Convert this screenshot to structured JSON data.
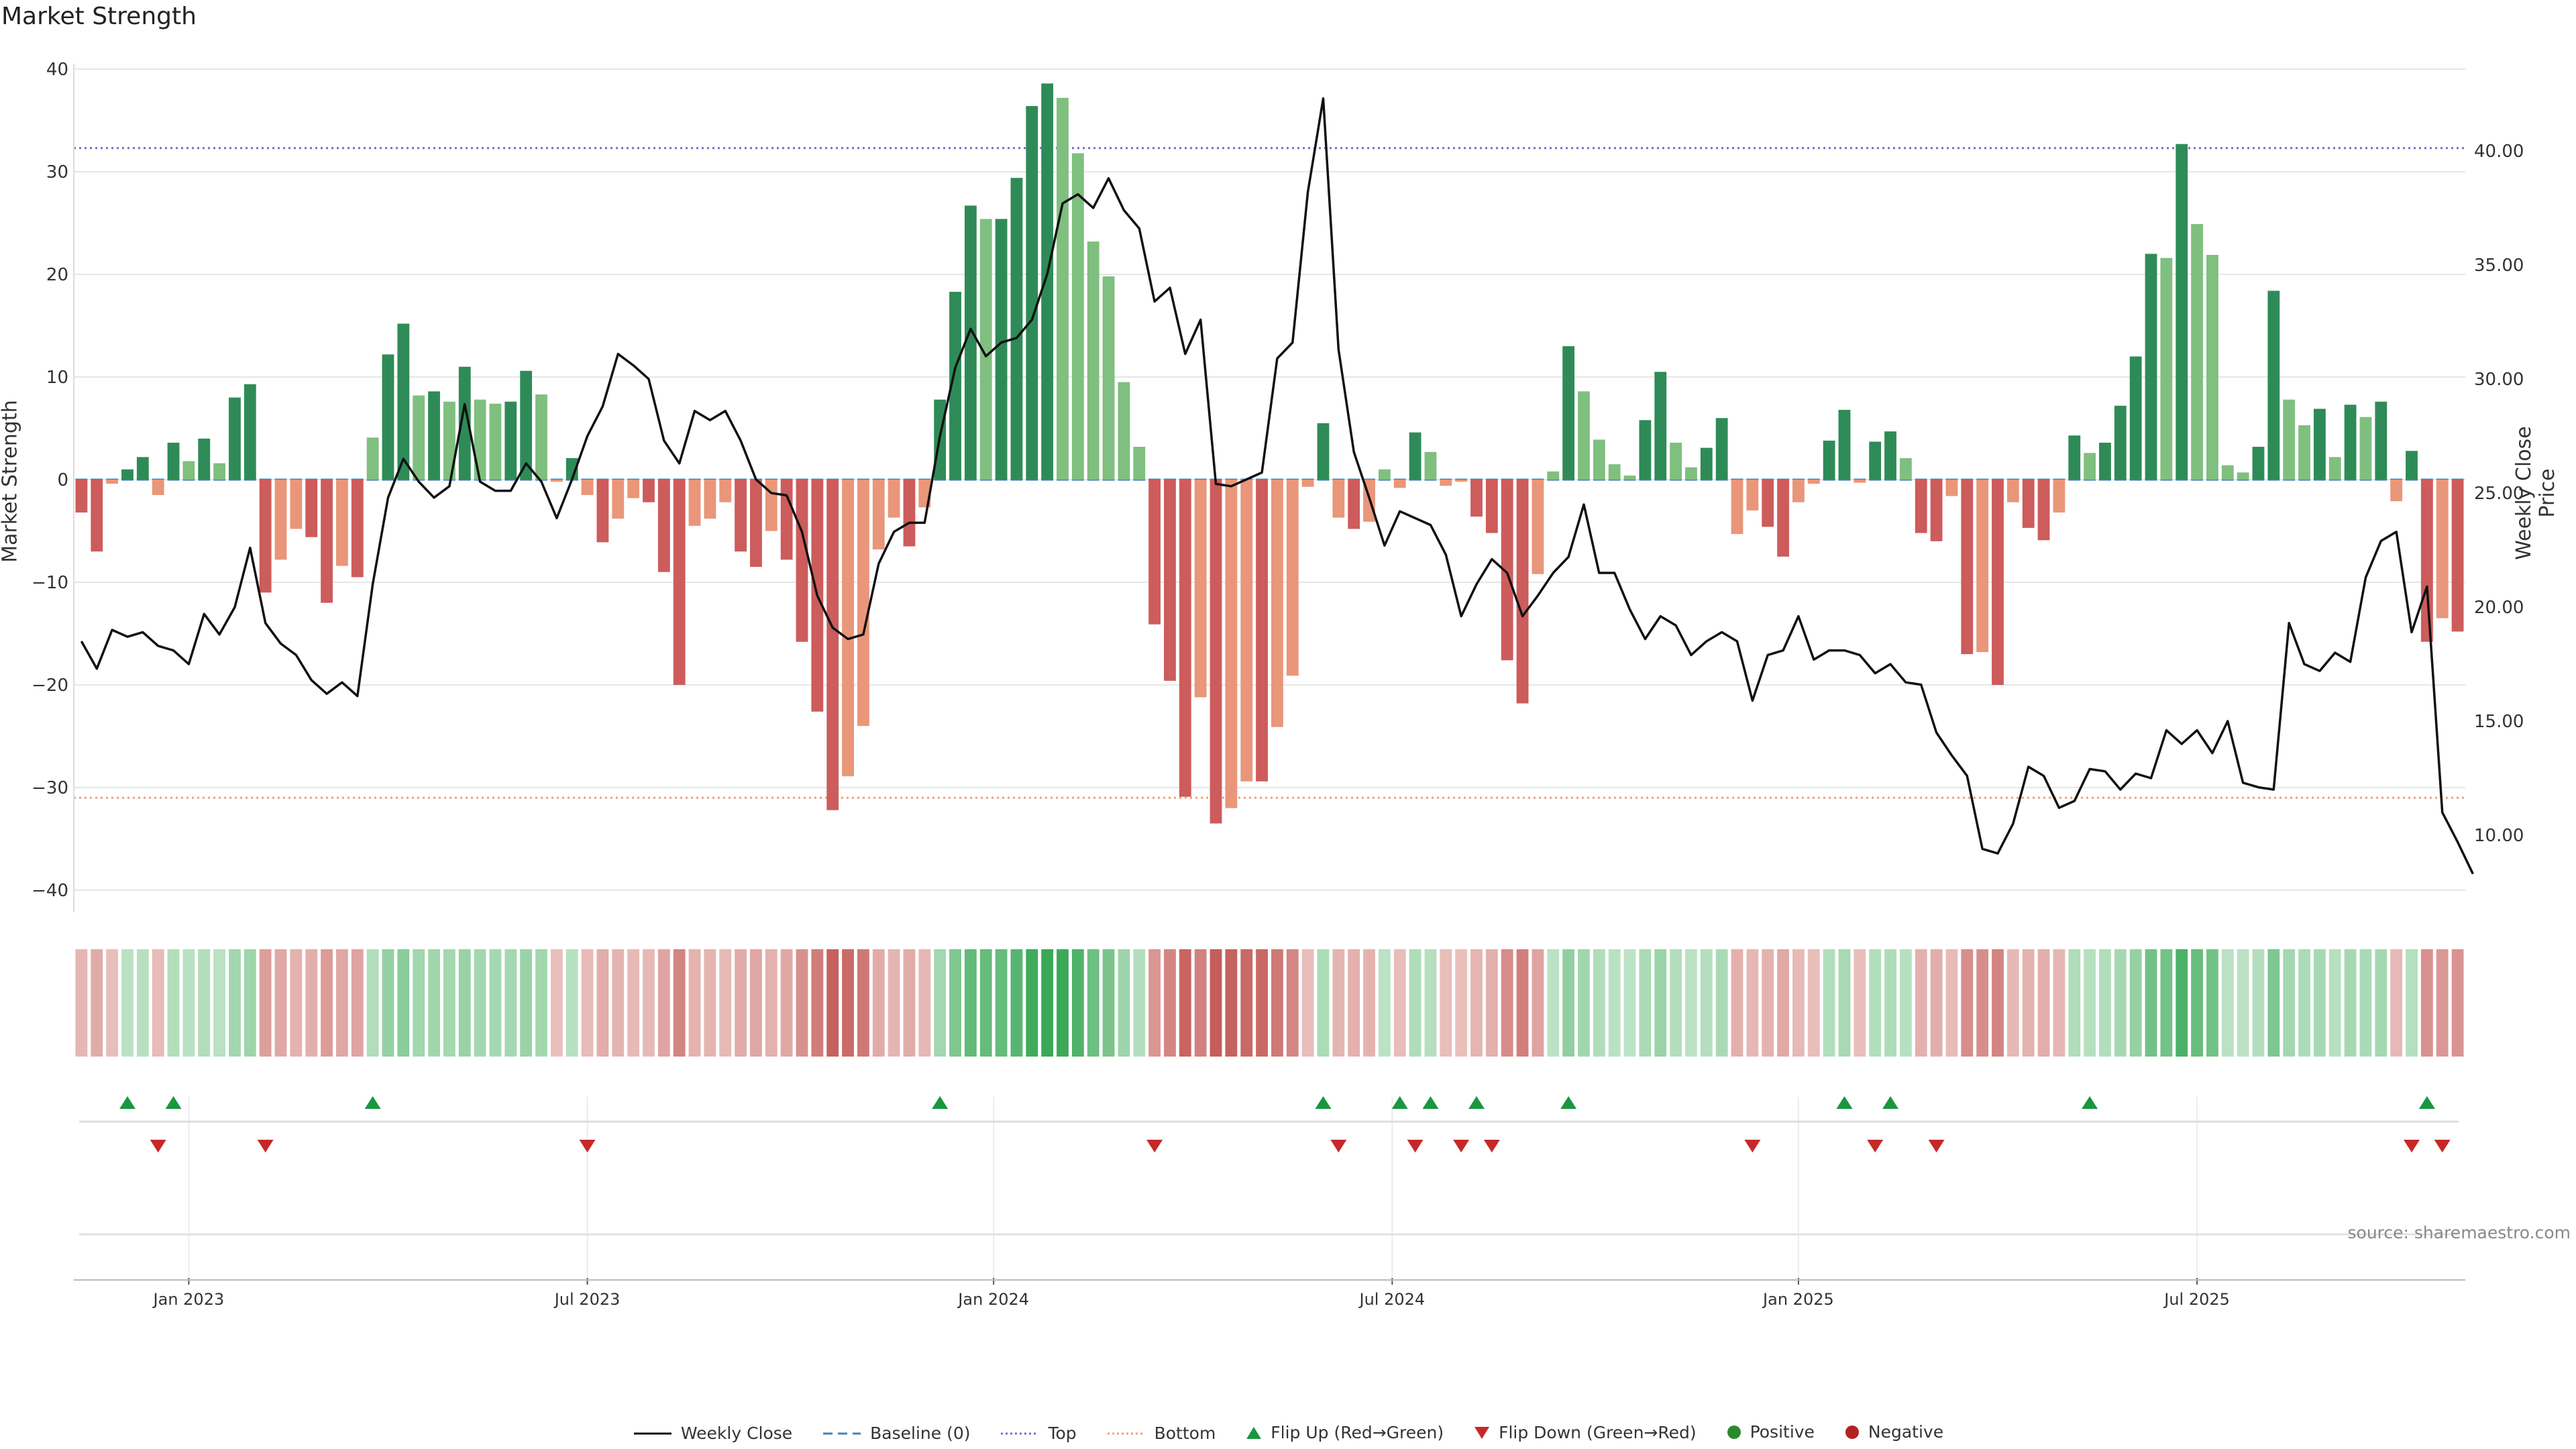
{
  "title": "Market Strength",
  "source": "source: sharemaestro.com",
  "chart_data": {
    "type": "bar",
    "y_left": {
      "label": "Market Strength",
      "lim": [
        -42,
        40
      ],
      "ticks": [
        40,
        30,
        20,
        10,
        0,
        -10,
        -20,
        -30,
        -40
      ]
    },
    "y_right": {
      "label": "Weekly Close Price",
      "lim": [
        7.5,
        43.8
      ],
      "ticks": [
        "40.00",
        "35.00",
        "30.00",
        "25.00",
        "20.00",
        "15.00",
        "10.00"
      ]
    },
    "x_ticks": [
      {
        "label": "Jan 2023",
        "index": 7.5
      },
      {
        "label": "Jul 2023",
        "index": 33.5
      },
      {
        "label": "Jan 2024",
        "index": 60
      },
      {
        "label": "Jul 2024",
        "index": 86
      },
      {
        "label": "Jan 2025",
        "index": 112.5
      },
      {
        "label": "Jul 2025",
        "index": 138.5
      }
    ],
    "grid": true,
    "reference_lines": {
      "top": 32.3,
      "bottom": -31,
      "baseline": 0
    },
    "strength": [
      -3.2,
      -7,
      -0.4,
      1,
      2.2,
      -1.5,
      3.6,
      1.8,
      4,
      1.6,
      8,
      9.3,
      -11,
      -7.8,
      -4.8,
      -5.6,
      -12,
      -8.4,
      -9.5,
      4.1,
      12.2,
      15.2,
      8.2,
      8.6,
      7.6,
      11,
      7.8,
      7.4,
      7.6,
      10.6,
      8.3,
      -0.2,
      2.1,
      -1.5,
      -6.1,
      -3.8,
      -1.8,
      -2.2,
      -9,
      -20,
      -4.5,
      -3.8,
      -2.2,
      -7,
      -8.5,
      -5,
      -7.8,
      -15.8,
      -22.6,
      -32.2,
      -28.9,
      -24,
      -6.8,
      -3.7,
      -6.5,
      -2.7,
      7.8,
      18.3,
      26.7,
      25.4,
      25.4,
      29.4,
      36.4,
      38.6,
      37.2,
      31.8,
      23.2,
      19.8,
      9.5,
      3.2,
      -14.1,
      -19.6,
      -30.9,
      -21.2,
      -33.5,
      -32,
      -29.4,
      -29.4,
      -24.1,
      -19.1,
      -0.7,
      5.5,
      -3.7,
      -4.8,
      -4.1,
      1,
      -0.8,
      4.6,
      2.7,
      -0.6,
      -0.2,
      -3.6,
      -5.2,
      -17.6,
      -21.8,
      -9.2,
      0.8,
      13,
      8.6,
      3.9,
      1.5,
      0.4,
      5.8,
      10.5,
      3.6,
      1.2,
      3.1,
      6,
      -5.3,
      -3,
      -4.6,
      -7.5,
      -2.2,
      -0.4,
      3.8,
      6.8,
      -0.3,
      3.7,
      4.7,
      2.1,
      -5.2,
      -6,
      -1.6,
      -17,
      -16.8,
      -20,
      -2.2,
      -4.7,
      -5.9,
      -3.2,
      4.3,
      2.6,
      3.6,
      7.2,
      12,
      22,
      21.6,
      32.7,
      24.9,
      21.9,
      1.4,
      0.7,
      3.2,
      18.4,
      7.8,
      5.3,
      6.9,
      2.2,
      7.3,
      6.1,
      7.6,
      -2.1,
      2.8,
      -15.8,
      -13.5,
      -14.8
    ],
    "weekly_close": [
      18.5,
      17.3,
      19.0,
      18.7,
      18.9,
      18.3,
      18.1,
      17.5,
      19.7,
      18.8,
      20.0,
      22.6,
      19.3,
      18.4,
      17.9,
      16.8,
      16.2,
      16.7,
      16.1,
      21.0,
      24.8,
      26.5,
      25.5,
      24.8,
      25.3,
      28.9,
      25.5,
      25.1,
      25.1,
      26.3,
      25.5,
      23.9,
      25.6,
      27.5,
      28.8,
      31.1,
      30.6,
      30.0,
      27.3,
      26.3,
      28.6,
      28.2,
      28.6,
      27.3,
      25.6,
      25.0,
      24.9,
      23.3,
      20.5,
      19.1,
      18.6,
      18.8,
      21.9,
      23.3,
      23.7,
      23.7,
      27.5,
      30.5,
      32.2,
      31.0,
      31.6,
      31.8,
      32.6,
      34.6,
      37.7,
      38.1,
      37.5,
      38.8,
      37.4,
      36.6,
      33.4,
      34.0,
      31.1,
      32.6,
      25.4,
      25.3,
      25.6,
      25.9,
      30.9,
      31.6,
      38.2,
      42.3,
      31.3,
      26.8,
      24.8,
      22.7,
      24.2,
      23.9,
      23.6,
      22.3,
      19.6,
      21.0,
      22.1,
      21.5,
      19.6,
      20.5,
      21.5,
      22.2,
      24.5,
      21.5,
      21.5,
      19.9,
      18.6,
      19.6,
      19.2,
      17.9,
      18.5,
      18.9,
      18.5,
      15.9,
      17.9,
      18.1,
      19.6,
      17.7,
      18.1,
      18.1,
      17.9,
      17.1,
      17.5,
      16.7,
      16.6,
      14.5,
      13.5,
      12.6,
      9.4,
      9.2,
      10.5,
      13.0,
      12.6,
      11.2,
      11.5,
      12.9,
      12.8,
      12.0,
      12.7,
      12.5,
      14.6,
      14.0,
      14.6,
      13.6,
      15.0,
      12.3,
      12.1,
      12.0,
      19.3,
      17.5,
      17.2,
      18.0,
      17.6,
      21.3,
      22.9,
      23.3,
      18.9,
      20.9,
      11.0,
      9.7,
      8.3
    ],
    "flip_up_indices": [
      3,
      6,
      19,
      56,
      81,
      86,
      88,
      91,
      97,
      115,
      118,
      131,
      153
    ],
    "flip_down_indices": [
      5,
      12,
      33,
      70,
      82,
      87,
      90,
      92,
      109,
      117,
      121,
      152,
      154
    ],
    "colors": {
      "pos_strong": "#2e8b57",
      "pos_light": "#7fbf7f",
      "neg_strong": "#cd5c5c",
      "neg_light": "#e9967a",
      "line": "#111111",
      "top": "#7b68cc",
      "bottom": "#f0a070",
      "baseline": "#4682b4",
      "flip_up": "#1a9641",
      "flip_down": "#c62828",
      "positive": "#2a8a2a",
      "negative": "#b22222"
    }
  },
  "legend": {
    "items": [
      {
        "label": "Weekly Close",
        "marker": "solid-line"
      },
      {
        "label": "Baseline (0)",
        "marker": "dash-line"
      },
      {
        "label": "Top",
        "marker": "dotted-purple-line"
      },
      {
        "label": "Bottom",
        "marker": "dotted-orange-line"
      },
      {
        "label": "Flip Up (Red→Green)",
        "marker": "green-up-triangle"
      },
      {
        "label": "Flip Down (Green→Red)",
        "marker": "red-down-triangle"
      },
      {
        "label": "Positive",
        "marker": "green-dot"
      },
      {
        "label": "Negative",
        "marker": "red-dot"
      }
    ]
  }
}
